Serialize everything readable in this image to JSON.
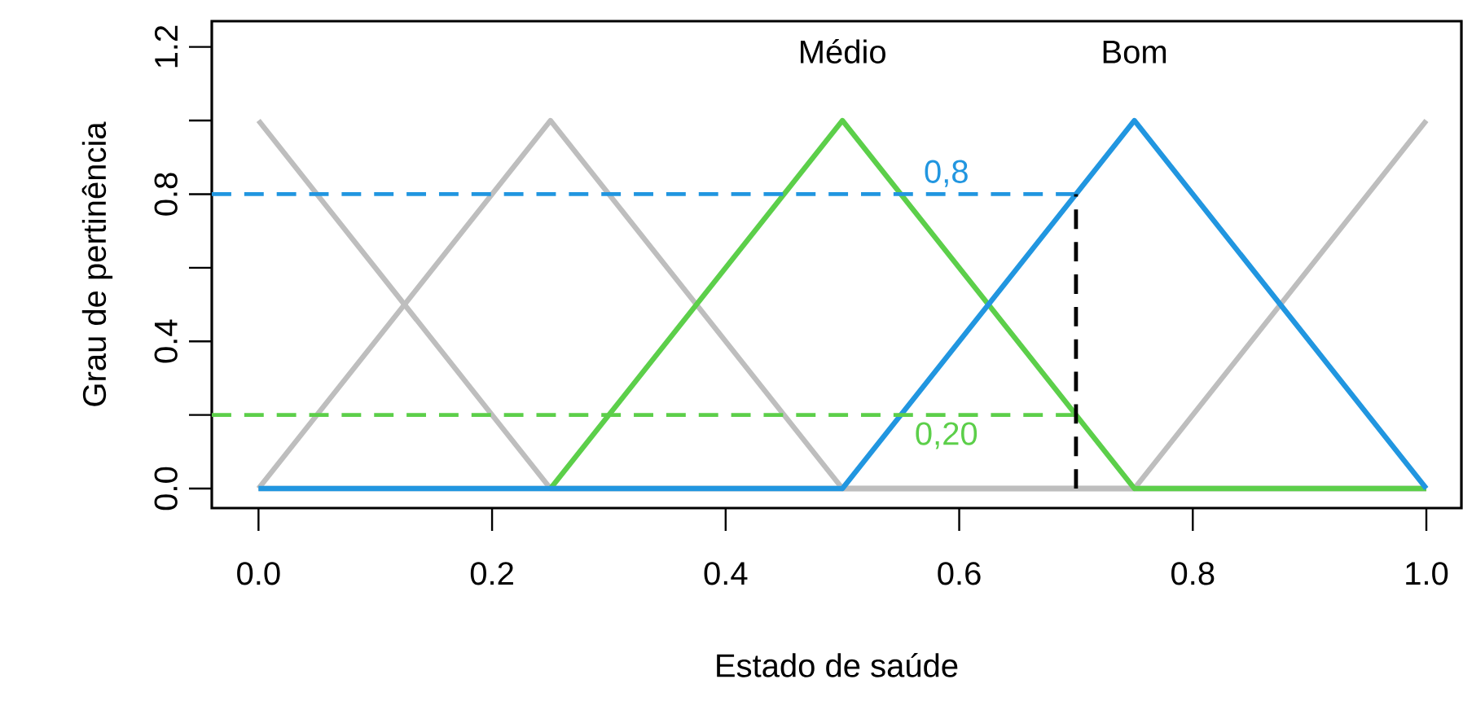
{
  "chart_data": {
    "type": "line",
    "xlabel": "Estado de saúde",
    "ylabel": "Grau de pertinência",
    "xlim": [
      -0.04,
      1.03
    ],
    "ylim": [
      -0.053,
      1.27
    ],
    "xticks": [
      {
        "value": 0,
        "label": "0.0"
      },
      0.2,
      0.4,
      0.6,
      0.8,
      {
        "value": 1,
        "label": "1.0"
      }
    ],
    "yticks": [
      {
        "value": 0,
        "label": "0.0"
      },
      {
        "value": 0.2,
        "label": null
      },
      0.4,
      {
        "value": 0.6,
        "label": null
      },
      0.8,
      {
        "value": 1,
        "label": null
      },
      1.2
    ],
    "marker": "none",
    "line_style": "solid",
    "series": [
      {
        "color": "#bebebe",
        "x": [
          0,
          0.25,
          1
        ],
        "values": [
          1,
          0,
          0
        ]
      },
      {
        "color": "#bebebe",
        "x": [
          0,
          0.25,
          0.5,
          1
        ],
        "values": [
          0,
          1,
          0,
          0
        ]
      },
      {
        "color": "#bebebe",
        "x": [
          0,
          0.75,
          1
        ],
        "values": [
          0,
          0,
          1
        ]
      },
      {
        "name": "Médio",
        "color": "#5ccf4a",
        "x": [
          0.25,
          0.5,
          0.75,
          1
        ],
        "values": [
          0,
          1,
          0,
          0
        ]
      },
      {
        "name": "Bom",
        "color": "#2196e0",
        "x": [
          0,
          0.5,
          0.75,
          1
        ],
        "values": [
          0,
          0,
          1,
          0
        ]
      }
    ],
    "ref_lines": [
      {
        "axis": "y",
        "value": 0.8,
        "label": "0,8",
        "color": "#2196e0",
        "line_style": "dashed"
      },
      {
        "axis": "y",
        "value": 0.2,
        "label": "0,20",
        "color": "#5ccf4a",
        "line_style": "dashed"
      },
      {
        "axis": "x",
        "value": 0.7,
        "color": "#000000",
        "line_style": "dashed"
      }
    ]
  }
}
